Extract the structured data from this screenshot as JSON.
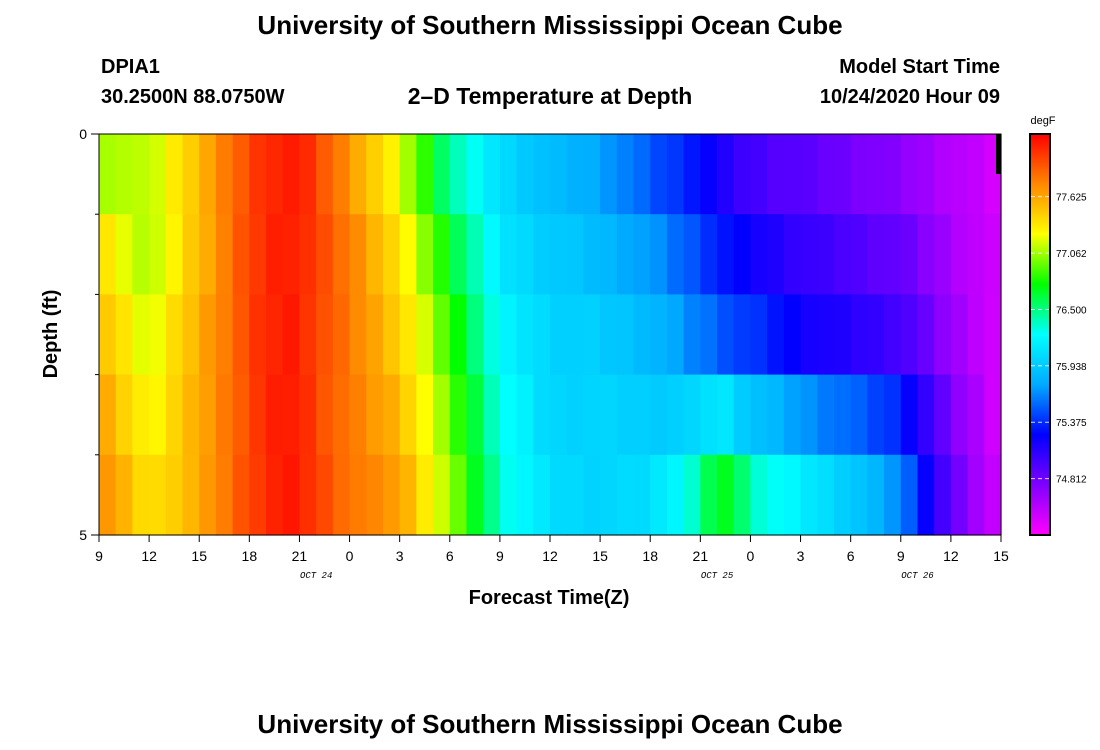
{
  "header": {
    "title": "University of Southern Mississippi Ocean Cube",
    "station_id": "DPIA1",
    "station_coords": "30.2500N 88.0750W",
    "plot_title": "2–D Temperature at Depth",
    "model_start_label": "Model Start Time",
    "model_start_value": "10/24/2020 Hour 09"
  },
  "footer": {
    "title": "University of Southern Mississippi Ocean Cube"
  },
  "chart_data": {
    "type": "heatmap",
    "title": "2–D Temperature at Depth",
    "xlabel": "Forecast Time(Z)",
    "ylabel": "Depth (ft)",
    "colorbar_label": "degF",
    "colorbar_ticks": [
      "74.812",
      "75.375",
      "75.938",
      "76.500",
      "77.062",
      "77.625"
    ],
    "color_range": [
      74.25,
      78.25
    ],
    "x_tick_labels": [
      "9",
      "12",
      "15",
      "18",
      "21",
      "0",
      "3",
      "6",
      "9",
      "12",
      "15",
      "18",
      "21",
      "0",
      "3",
      "6",
      "9",
      "12",
      "15"
    ],
    "x_date_labels": [
      "OCT 24",
      "OCT 25",
      "OCT 26"
    ],
    "x_range_hours": [
      0,
      54
    ],
    "y_tick_labels": [
      "0",
      "5"
    ],
    "ylim": [
      0,
      5
    ],
    "depth_levels_ft": [
      0,
      1,
      2,
      3,
      4,
      5
    ],
    "forecast_hours": [
      0,
      3,
      6,
      9,
      10,
      11,
      12,
      13,
      15,
      18,
      21,
      24,
      27,
      30,
      33,
      36,
      37,
      38,
      39,
      40,
      42,
      45,
      48,
      51,
      54
    ],
    "temperature_degF": [
      [
        76.9,
        77.2,
        77.6,
        78.0,
        78.1,
        78.15,
        78.15,
        78.0,
        77.6,
        77.1,
        76.3,
        76.0,
        75.8,
        75.7,
        75.4,
        75.2,
        75.0,
        74.9,
        74.9,
        74.8,
        74.8,
        74.7,
        74.6,
        74.5,
        74.4
      ],
      [
        77.3,
        77.0,
        77.5,
        78.0,
        78.1,
        78.15,
        78.15,
        78.0,
        77.8,
        77.3,
        76.6,
        76.1,
        75.9,
        75.8,
        75.6,
        75.4,
        75.3,
        75.2,
        75.1,
        75.1,
        75.0,
        74.9,
        74.8,
        74.6,
        74.4
      ],
      [
        77.5,
        77.1,
        77.6,
        78.0,
        78.1,
        78.15,
        78.15,
        78.0,
        77.8,
        77.4,
        76.8,
        76.1,
        76.0,
        75.9,
        75.8,
        75.5,
        75.4,
        75.3,
        75.3,
        75.2,
        75.1,
        75.0,
        74.9,
        74.6,
        74.4
      ],
      [
        77.6,
        77.2,
        77.6,
        78.0,
        78.1,
        78.15,
        78.15,
        78.0,
        77.8,
        77.5,
        76.9,
        76.3,
        76.0,
        76.0,
        75.9,
        75.7,
        75.7,
        75.6,
        75.5,
        75.5,
        75.3,
        75.2,
        75.1,
        74.7,
        74.4
      ],
      [
        77.7,
        77.3,
        77.6,
        78.0,
        78.1,
        78.15,
        78.15,
        78.0,
        77.8,
        77.6,
        77.0,
        76.3,
        76.0,
        76.0,
        76.0,
        76.3,
        76.6,
        76.5,
        76.3,
        76.2,
        76.1,
        75.9,
        75.6,
        74.8,
        74.4
      ],
      [
        77.8,
        77.4,
        77.6,
        78.0,
        78.1,
        78.15,
        78.15,
        78.05,
        77.85,
        77.7,
        77.1,
        76.4,
        76.1,
        76.0,
        76.1,
        76.5,
        76.9,
        76.8,
        76.5,
        76.4,
        76.2,
        76.0,
        75.7,
        74.9,
        74.4
      ]
    ]
  }
}
